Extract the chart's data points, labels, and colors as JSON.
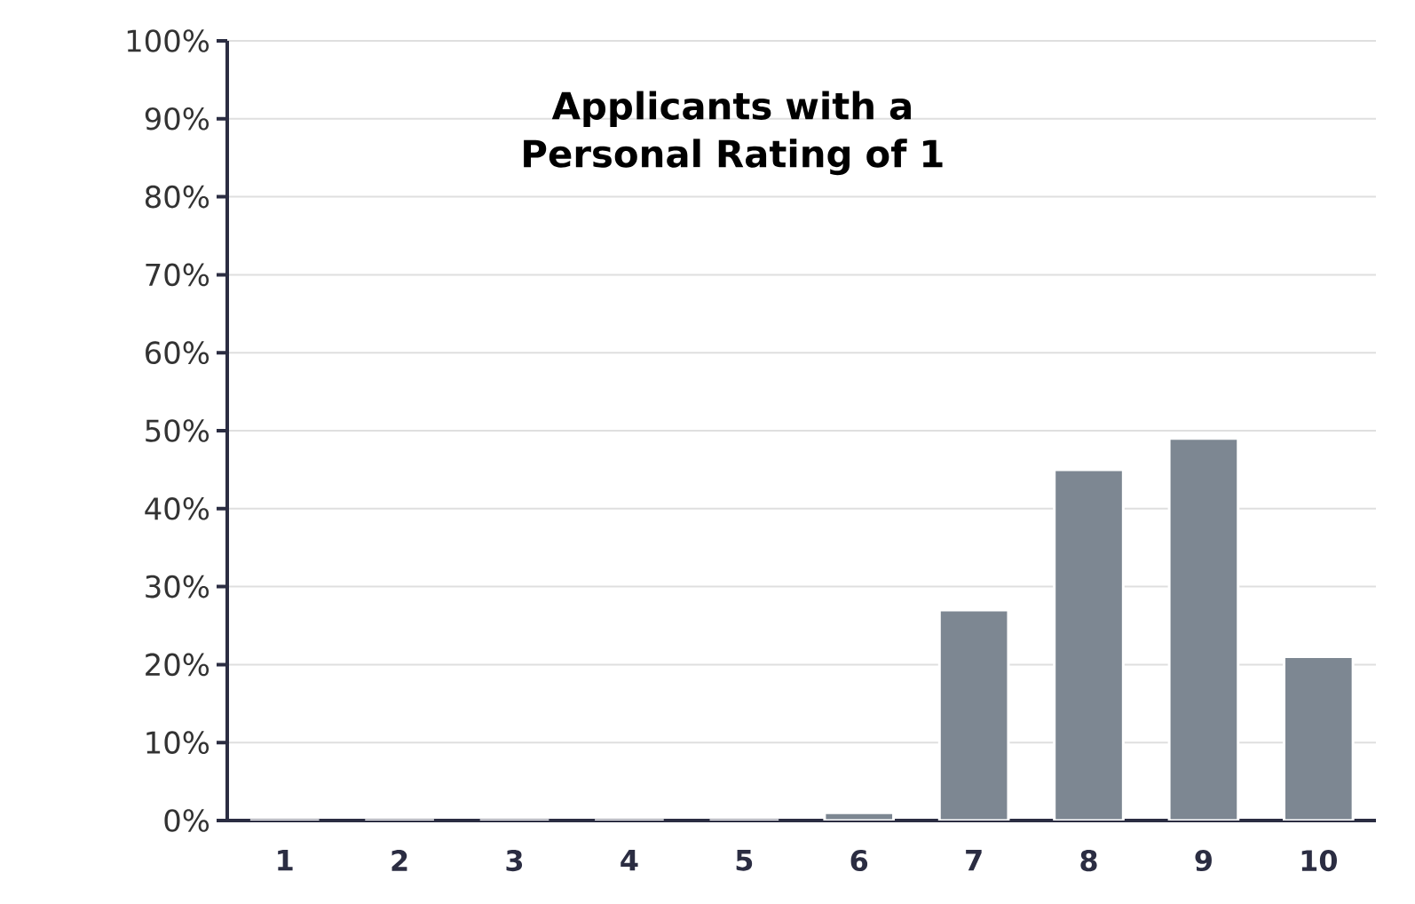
{
  "chart_data": {
    "type": "bar",
    "title": "Applicants with a Personal Rating of 1",
    "categories": [
      "1",
      "2",
      "3",
      "4",
      "5",
      "6",
      "7",
      "8",
      "9",
      "10"
    ],
    "values": [
      0,
      0,
      0,
      0,
      0,
      1,
      27,
      45,
      49,
      21
    ],
    "color": "#7d8792",
    "ylim": [
      0,
      100
    ],
    "yticks": [
      {
        "value": 0,
        "label": "0%"
      },
      {
        "value": 10,
        "label": "10%"
      },
      {
        "value": 20,
        "label": "20%"
      },
      {
        "value": 30,
        "label": "30%"
      },
      {
        "value": 40,
        "label": "40%"
      },
      {
        "value": 50,
        "label": "50%"
      },
      {
        "value": 60,
        "label": "60%"
      },
      {
        "value": 70,
        "label": "70%"
      },
      {
        "value": 80,
        "label": "80%"
      },
      {
        "value": 90,
        "label": "90%"
      },
      {
        "value": 100,
        "label": "100%"
      }
    ],
    "grid": "y"
  }
}
